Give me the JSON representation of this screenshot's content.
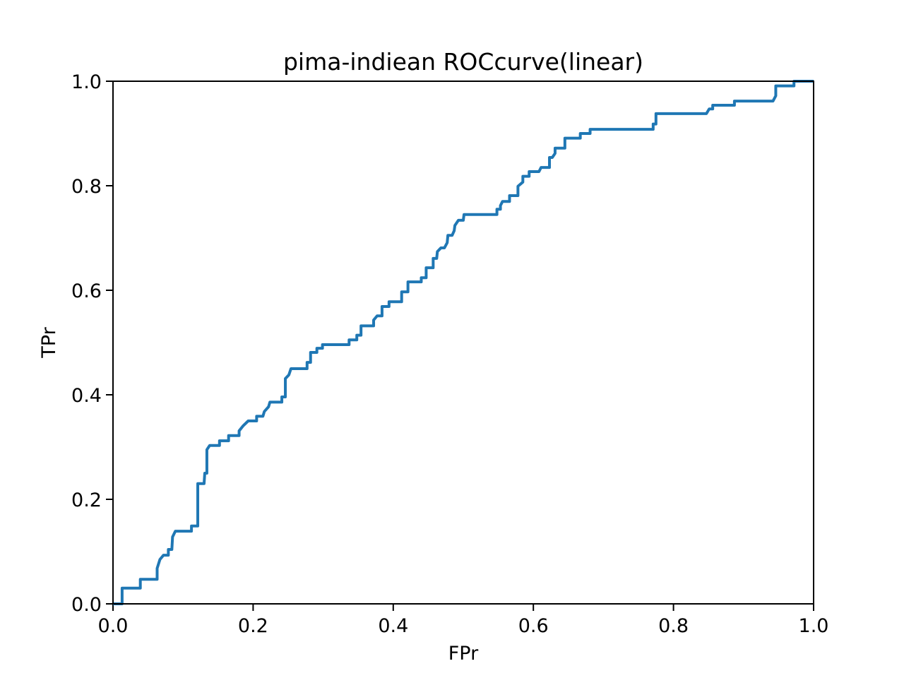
{
  "chart_data": {
    "type": "line",
    "title": "pima-indiean ROCcurve(linear)",
    "x_label": "FPr",
    "y_label": "TPr",
    "color": "#1f77b4",
    "x": [
      0,
      0.013,
      0.013,
      0.039,
      0.039,
      0.063,
      0.063,
      0.067,
      0.072,
      0.079,
      0.079,
      0.084,
      0.085,
      0.089,
      0.112,
      0.112,
      0.121,
      0.121,
      0.13,
      0.131,
      0.134,
      0.134,
      0.138,
      0.152,
      0.152,
      0.165,
      0.165,
      0.18,
      0.18,
      0.186,
      0.193,
      0.205,
      0.205,
      0.214,
      0.216,
      0.222,
      0.224,
      0.241,
      0.241,
      0.246,
      0.246,
      0.251,
      0.254,
      0.277,
      0.277,
      0.282,
      0.282,
      0.291,
      0.291,
      0.299,
      0.299,
      0.337,
      0.337,
      0.348,
      0.348,
      0.354,
      0.354,
      0.372,
      0.372,
      0.377,
      0.384,
      0.384,
      0.394,
      0.394,
      0.412,
      0.412,
      0.421,
      0.421,
      0.44,
      0.44,
      0.447,
      0.447,
      0.457,
      0.457,
      0.462,
      0.463,
      0.468,
      0.473,
      0.477,
      0.478,
      0.484,
      0.487,
      0.488,
      0.493,
      0.5,
      0.501,
      0.548,
      0.548,
      0.553,
      0.553,
      0.556,
      0.566,
      0.566,
      0.578,
      0.578,
      0.585,
      0.585,
      0.594,
      0.594,
      0.608,
      0.611,
      0.623,
      0.623,
      0.627,
      0.631,
      0.631,
      0.645,
      0.645,
      0.667,
      0.667,
      0.681,
      0.681,
      0.771,
      0.771,
      0.775,
      0.775,
      0.847,
      0.851,
      0.856,
      0.856,
      0.887,
      0.887,
      0.942,
      0.946,
      0.946,
      0.972,
      0.972,
      1
    ],
    "values": [
      0,
      0,
      0.03,
      0.03,
      0.047,
      0.047,
      0.068,
      0.085,
      0.093,
      0.093,
      0.104,
      0.104,
      0.128,
      0.139,
      0.139,
      0.149,
      0.149,
      0.23,
      0.23,
      0.25,
      0.25,
      0.295,
      0.303,
      0.303,
      0.312,
      0.312,
      0.322,
      0.322,
      0.331,
      0.341,
      0.35,
      0.35,
      0.359,
      0.359,
      0.368,
      0.377,
      0.386,
      0.386,
      0.396,
      0.396,
      0.431,
      0.438,
      0.45,
      0.45,
      0.462,
      0.462,
      0.481,
      0.481,
      0.489,
      0.489,
      0.496,
      0.496,
      0.505,
      0.505,
      0.514,
      0.514,
      0.532,
      0.532,
      0.543,
      0.551,
      0.551,
      0.569,
      0.569,
      0.578,
      0.578,
      0.597,
      0.597,
      0.616,
      0.616,
      0.624,
      0.624,
      0.643,
      0.643,
      0.661,
      0.661,
      0.674,
      0.681,
      0.681,
      0.691,
      0.705,
      0.705,
      0.714,
      0.724,
      0.734,
      0.734,
      0.745,
      0.745,
      0.755,
      0.755,
      0.762,
      0.77,
      0.77,
      0.781,
      0.781,
      0.799,
      0.807,
      0.818,
      0.818,
      0.827,
      0.827,
      0.835,
      0.835,
      0.854,
      0.854,
      0.862,
      0.872,
      0.872,
      0.891,
      0.891,
      0.9,
      0.9,
      0.908,
      0.908,
      0.918,
      0.918,
      0.938,
      0.938,
      0.947,
      0.947,
      0.954,
      0.954,
      0.962,
      0.962,
      0.972,
      0.991,
      0.991,
      1.0,
      1.0
    ],
    "xlim": [
      0,
      1
    ],
    "ylim": [
      0,
      1
    ],
    "xticks": [
      {
        "value": 0,
        "label": "0.0"
      },
      0.2,
      0.4,
      0.6,
      0.8,
      {
        "value": 1,
        "label": "1.0"
      }
    ],
    "yticks": [
      {
        "value": 0,
        "label": "0.0"
      },
      0.2,
      0.4,
      0.6,
      0.8,
      {
        "value": 1,
        "label": "1.0"
      }
    ]
  }
}
